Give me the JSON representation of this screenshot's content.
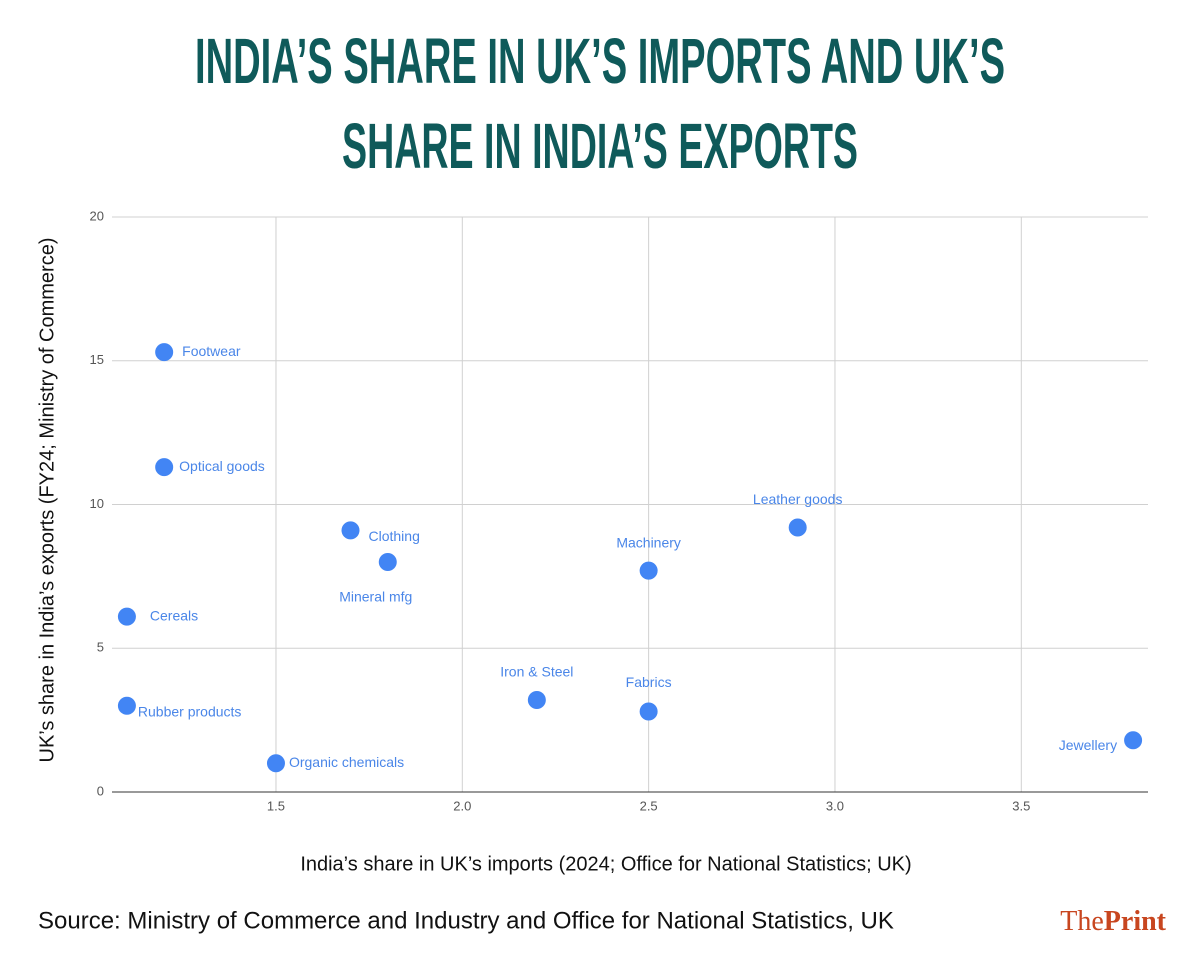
{
  "chart_data": {
    "type": "scatter",
    "title": [
      "INDIA’S SHARE IN UK’S IMPORTS AND UK’S",
      "SHARE IN INDIA’S EXPORTS"
    ],
    "x_label": "India’s share in UK’s imports (2024; Office for National Statistics; UK)",
    "y_label": "UK’s share in India’s exports (FY24; Ministry of Commerce)",
    "source": "Source: Ministry of Commerce and Industry and Office for National Statistics, UK",
    "brand": [
      "The",
      "Print"
    ],
    "color": "#4285f4",
    "grid": true,
    "xlim": [
      1.06,
      3.84
    ],
    "ylim": [
      0,
      20
    ],
    "xticks": [
      1.5,
      {
        "value": 2.0,
        "label": "2.0"
      },
      2.5,
      {
        "value": 3.0,
        "label": "3.0"
      },
      3.5
    ],
    "yticks": [
      0,
      5,
      10,
      15,
      20
    ],
    "labels": [
      "Footwear",
      "Optical goods",
      "Clothing",
      "Mineral mfg",
      "Cereals",
      "Rubber products",
      "Organic chemicals",
      "Iron & Steel",
      "Machinery",
      "Fabrics",
      "Leather goods",
      "Jewellery"
    ],
    "x": [
      1.2,
      1.2,
      1.7,
      1.8,
      1.1,
      1.1,
      1.5,
      2.2,
      2.5,
      2.5,
      2.9,
      3.8
    ],
    "values": [
      15.3,
      11.3,
      9.1,
      8.0,
      6.1,
      3.0,
      1.0,
      3.2,
      7.7,
      2.8,
      9.2,
      1.8
    ]
  }
}
